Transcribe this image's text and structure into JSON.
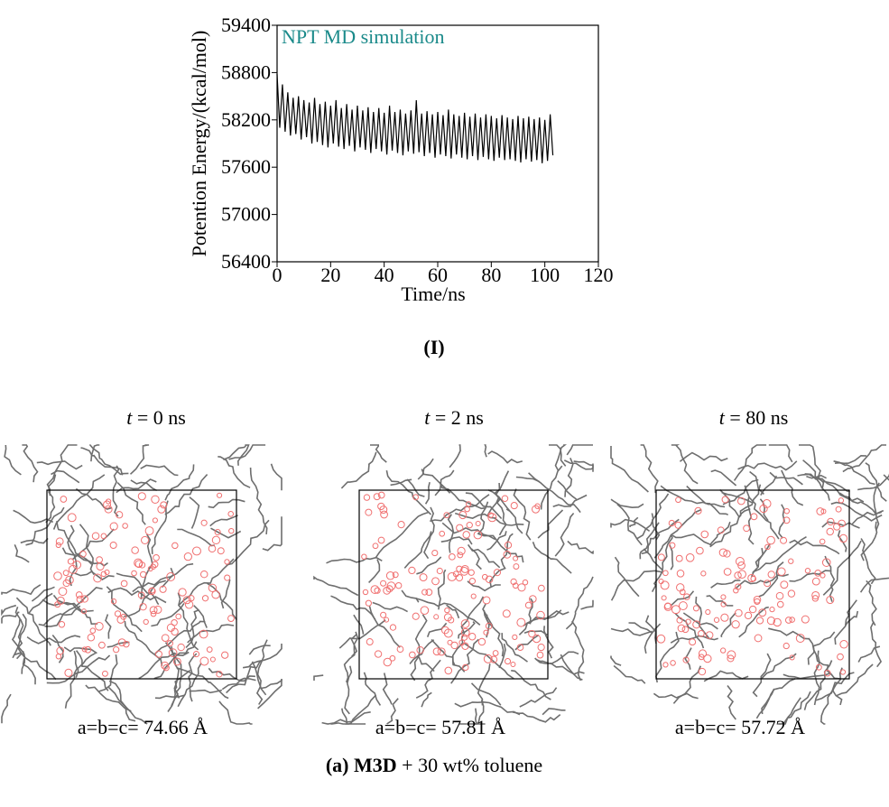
{
  "chart_data": {
    "type": "line",
    "annotation": "NPT MD simulation",
    "xlabel": "Time/ns",
    "ylabel": "Potention Energy/(kcal/mol)",
    "x": [
      0,
      1,
      2,
      3,
      4,
      5,
      6,
      7,
      8,
      9,
      10,
      11,
      12,
      13,
      14,
      15,
      16,
      17,
      18,
      19,
      20,
      21,
      22,
      23,
      24,
      25,
      26,
      27,
      28,
      29,
      30,
      31,
      32,
      33,
      34,
      35,
      36,
      37,
      38,
      39,
      40,
      41,
      42,
      43,
      44,
      45,
      46,
      47,
      48,
      49,
      50,
      51,
      52,
      53,
      54,
      55,
      56,
      57,
      58,
      59,
      60,
      61,
      62,
      63,
      64,
      65,
      66,
      67,
      68,
      69,
      70,
      71,
      72,
      73,
      74,
      75,
      76,
      77,
      78,
      79,
      80,
      81,
      82,
      83,
      84,
      85,
      86,
      87,
      88,
      89,
      90,
      91,
      92,
      93,
      94,
      95,
      96,
      97,
      98,
      99,
      100,
      101,
      102,
      103
    ],
    "series": [
      {
        "color": "#000000",
        "values": [
          58780,
          58100,
          58650,
          58050,
          58550,
          58000,
          58480,
          58020,
          58500,
          57950,
          58450,
          57980,
          58420,
          57900,
          58480,
          57920,
          58400,
          57880,
          58430,
          57850,
          58380,
          57900,
          58450,
          57860,
          58350,
          57830,
          58400,
          57870,
          58330,
          57800,
          58380,
          57850,
          58320,
          57820,
          58360,
          57780,
          58300,
          57830,
          58350,
          57800,
          58290,
          57760,
          58380,
          57810,
          58300,
          57780,
          58330,
          57750,
          58280,
          57800,
          58320,
          57770,
          58450,
          57790,
          58280,
          57740,
          58310,
          57780,
          58270,
          57720,
          58300,
          57760,
          58260,
          57740,
          58330,
          57710,
          58270,
          57760,
          58250,
          57720,
          58290,
          57700,
          58240,
          57740,
          58280,
          57690,
          58230,
          57730,
          58270,
          57700,
          58250,
          57680,
          58220,
          57720,
          58260,
          57690,
          58230,
          57700,
          58210,
          57680,
          58250,
          57660,
          58220,
          57700,
          58240,
          57670,
          58210,
          57690,
          58230,
          57650,
          58200,
          57680,
          58270,
          57750
        ]
      }
    ],
    "xlim": [
      0,
      120
    ],
    "xticks": [
      0,
      20,
      40,
      60,
      80,
      100,
      120
    ],
    "ylim": [
      56400,
      59400
    ],
    "yticks": [
      56400,
      57000,
      57600,
      58200,
      58800,
      59400
    ],
    "annotation_color": "#1a8a8a"
  },
  "chart_caption": "(I)",
  "snapshots": [
    {
      "var": "t",
      "time": "= 0 ns",
      "cell": "a=b=c= 74.66 Å"
    },
    {
      "var": "t",
      "time": "= 2 ns",
      "cell": "a=b=c= 57.81 Å"
    },
    {
      "var": "t",
      "time": "= 80 ns",
      "cell": "a=b=c= 57.72 Å"
    }
  ],
  "caption": {
    "bold": "(a) M3D",
    "rest": "+ 30 wt% toluene"
  }
}
